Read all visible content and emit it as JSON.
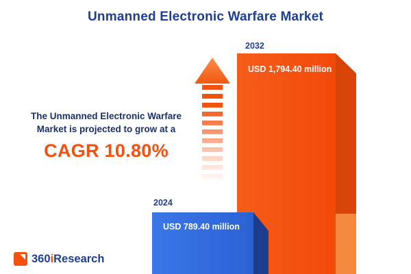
{
  "title": "Unmanned Electronic Warfare Market",
  "annotation": {
    "line1": "The Unmanned Electronic Warfare",
    "line2": "Market is projected to grow at a",
    "cagr": "CAGR 10.80%"
  },
  "chart_data": {
    "type": "bar",
    "title": "Unmanned Electronic Warfare Market",
    "categories": [
      "2024",
      "2032"
    ],
    "values": [
      789.4,
      1794.4
    ],
    "value_labels": [
      "USD 789.40 million",
      "USD 1,794.40 million"
    ],
    "unit": "USD million",
    "xlabel": "",
    "ylabel": "",
    "ylim": [
      0,
      1900
    ],
    "grid": false,
    "legend": "none",
    "bar_colors": [
      "#2f6bdb",
      "#f4510e"
    ],
    "bar_side_colors": [
      "#1c3c8e",
      "#d84307"
    ],
    "annotations": [
      "The Unmanned Electronic Warfare Market is projected to grow at a CAGR 10.80%"
    ]
  },
  "colors": {
    "accent_orange": "#f4510e",
    "brand_navy": "#1c3e94",
    "bar_blue": "#2f6bdb"
  },
  "logo": {
    "part1": "360",
    "part2": "i",
    "part3": "Research"
  }
}
